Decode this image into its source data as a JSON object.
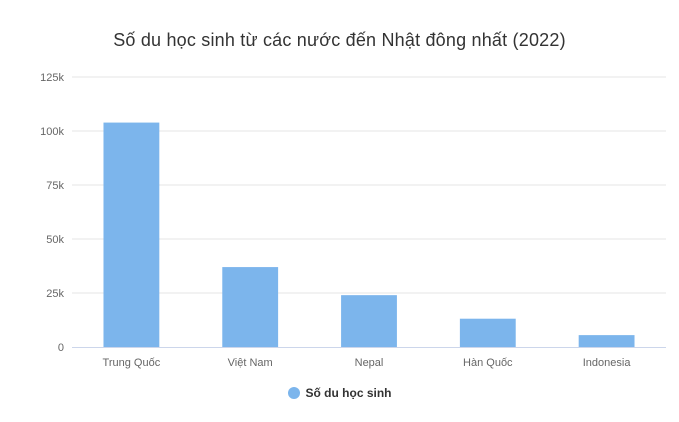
{
  "chart_data": {
    "type": "bar",
    "title": "Số du học sinh từ các nước đến Nhật đông nhất (2022)",
    "categories": [
      "Trung Quốc",
      "Việt Nam",
      "Nepal",
      "Hàn Quốc",
      "Indonesia"
    ],
    "series": [
      {
        "name": "Số du học sinh",
        "values": [
          103900,
          37000,
          24000,
          13100,
          5500
        ],
        "color": "#7cb5ec"
      }
    ],
    "yticks": [
      0,
      25000,
      50000,
      75000,
      100000,
      125000
    ],
    "ytick_labels": [
      "0",
      "25k",
      "50k",
      "75k",
      "100k",
      "125k"
    ],
    "ylim": [
      0,
      125000
    ],
    "grid": true,
    "legend": "bottom-center"
  }
}
